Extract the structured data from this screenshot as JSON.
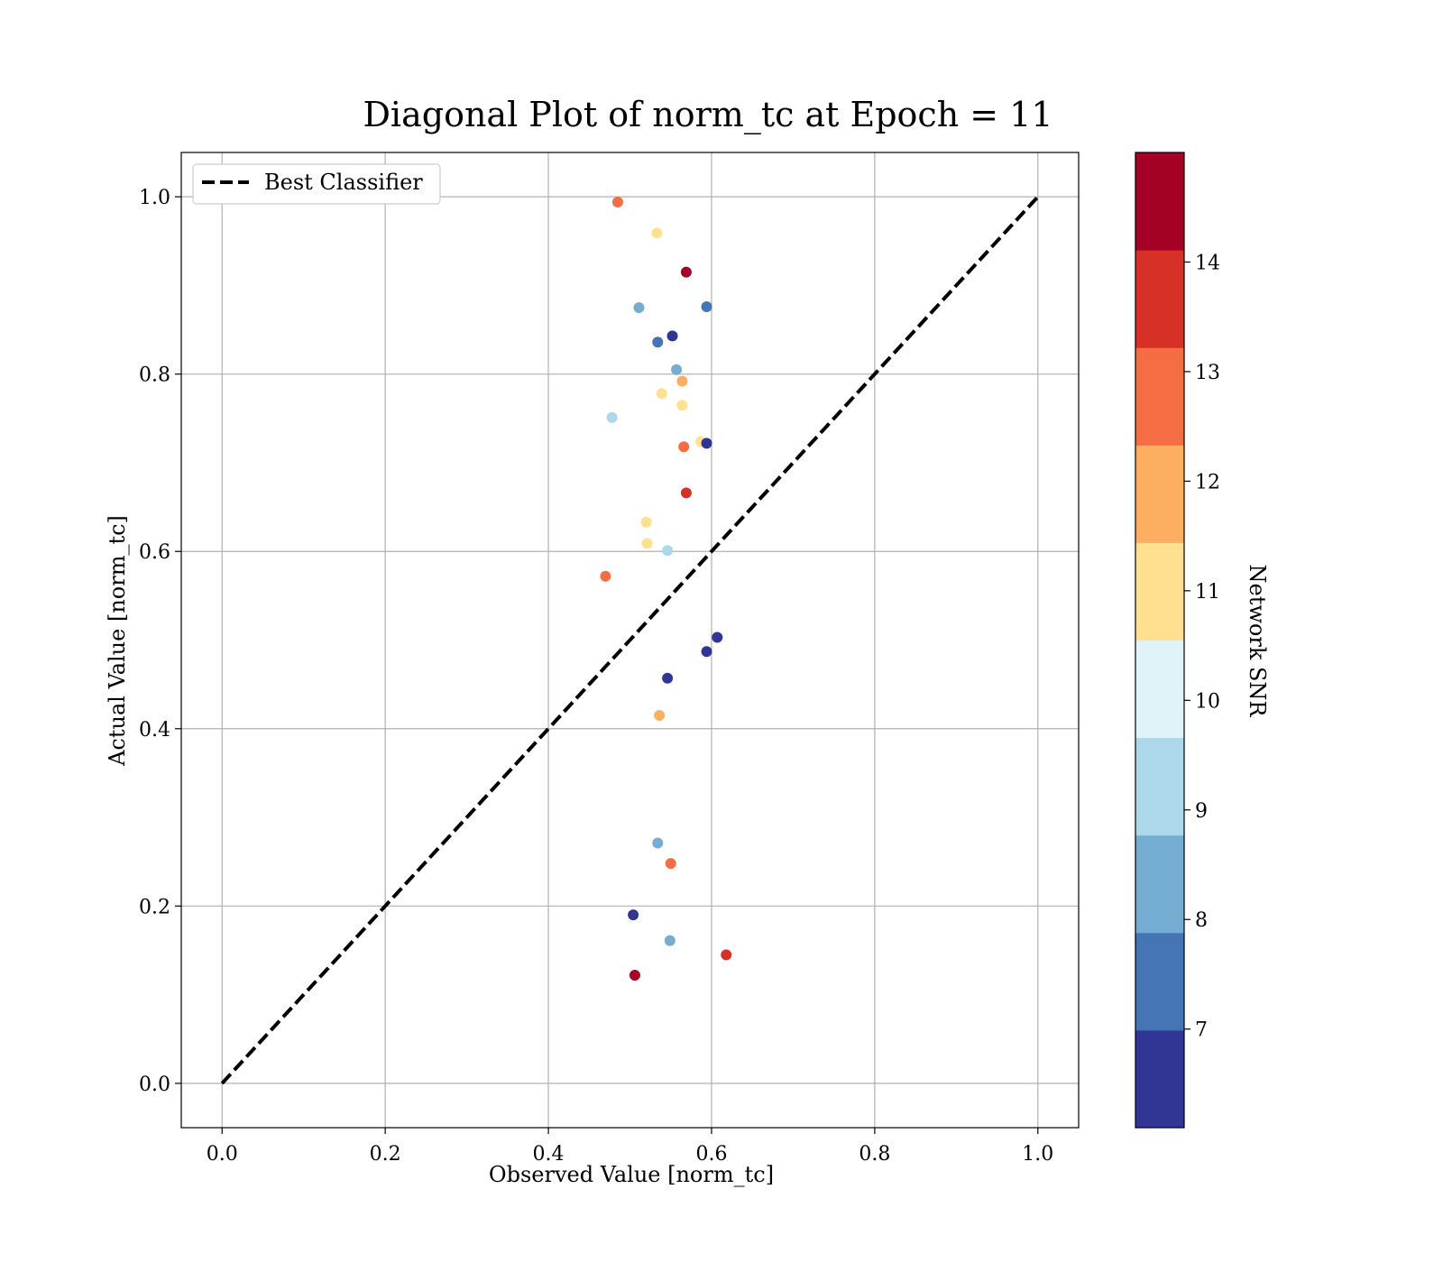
{
  "chart_data": {
    "type": "scatter",
    "title": "Diagonal Plot of norm_tc at Epoch = 11",
    "xlabel": "Observed Value [norm_tc]",
    "ylabel": "Actual Value [norm_tc]",
    "xlim": [
      -0.05,
      1.05
    ],
    "ylim": [
      -0.05,
      1.05
    ],
    "xticks": [
      "0.0",
      "0.2",
      "0.4",
      "0.6",
      "0.8",
      "1.0"
    ],
    "yticks": [
      "0.0",
      "0.2",
      "0.4",
      "0.6",
      "0.8",
      "1.0"
    ],
    "grid": true,
    "legend": {
      "placement": "top-left",
      "entries": [
        "Best Classifier"
      ]
    },
    "reference_line": {
      "name": "Best Classifier",
      "x": [
        0,
        1
      ],
      "y": [
        0,
        1
      ],
      "style": "dashed",
      "color": "#000000"
    },
    "colorbar": {
      "label": "Network SNR",
      "range": [
        6.1,
        15.0
      ],
      "ticks": [
        "7",
        "8",
        "9",
        "10",
        "11",
        "12",
        "13",
        "14"
      ],
      "colors": [
        "#313695",
        "#4575b4",
        "#74add1",
        "#abd9e9",
        "#e0f3f8",
        "#fee090",
        "#fdae61",
        "#f46d43",
        "#d73027",
        "#a50026"
      ]
    },
    "points": [
      {
        "x": 0.485,
        "y": 0.994,
        "snr": 13
      },
      {
        "x": 0.533,
        "y": 0.959,
        "snr": 11
      },
      {
        "x": 0.569,
        "y": 0.915,
        "snr": 15
      },
      {
        "x": 0.511,
        "y": 0.875,
        "snr": 8
      },
      {
        "x": 0.594,
        "y": 0.876,
        "snr": 7
      },
      {
        "x": 0.552,
        "y": 0.843,
        "snr": 6.5
      },
      {
        "x": 0.534,
        "y": 0.836,
        "snr": 7
      },
      {
        "x": 0.557,
        "y": 0.805,
        "snr": 8
      },
      {
        "x": 0.564,
        "y": 0.792,
        "snr": 12
      },
      {
        "x": 0.539,
        "y": 0.778,
        "snr": 11
      },
      {
        "x": 0.564,
        "y": 0.765,
        "snr": 11
      },
      {
        "x": 0.478,
        "y": 0.751,
        "snr": 9
      },
      {
        "x": 0.587,
        "y": 0.724,
        "snr": 11
      },
      {
        "x": 0.594,
        "y": 0.722,
        "snr": 6.5
      },
      {
        "x": 0.566,
        "y": 0.718,
        "snr": 13
      },
      {
        "x": 0.569,
        "y": 0.666,
        "snr": 14
      },
      {
        "x": 0.52,
        "y": 0.633,
        "snr": 11
      },
      {
        "x": 0.521,
        "y": 0.609,
        "snr": 11
      },
      {
        "x": 0.546,
        "y": 0.601,
        "snr": 9
      },
      {
        "x": 0.47,
        "y": 0.572,
        "snr": 13
      },
      {
        "x": 0.607,
        "y": 0.503,
        "snr": 6.5
      },
      {
        "x": 0.594,
        "y": 0.487,
        "snr": 6.5
      },
      {
        "x": 0.546,
        "y": 0.457,
        "snr": 6.5
      },
      {
        "x": 0.536,
        "y": 0.415,
        "snr": 12
      },
      {
        "x": 0.534,
        "y": 0.271,
        "snr": 8
      },
      {
        "x": 0.55,
        "y": 0.248,
        "snr": 13
      },
      {
        "x": 0.504,
        "y": 0.19,
        "snr": 6.5
      },
      {
        "x": 0.549,
        "y": 0.161,
        "snr": 8
      },
      {
        "x": 0.618,
        "y": 0.145,
        "snr": 14
      },
      {
        "x": 0.506,
        "y": 0.122,
        "snr": 15
      }
    ]
  }
}
